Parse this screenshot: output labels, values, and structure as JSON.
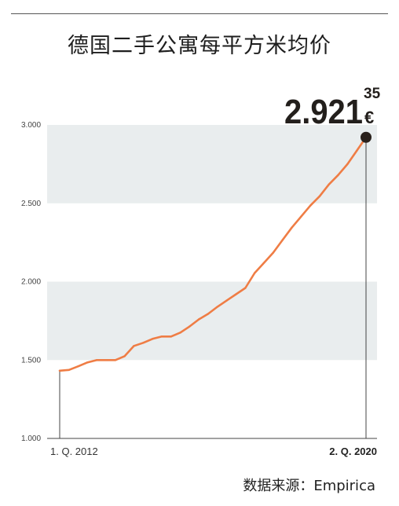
{
  "chart_data": {
    "type": "line",
    "title": "德国二手公寓每平方米均价",
    "source": "数据来源：Empirica",
    "ylim": [
      1000,
      3000
    ],
    "y_ticks": [
      "1.000",
      "1.500",
      "2.000",
      "2.500",
      "3.000"
    ],
    "x_tick_labels": {
      "first": "1. Q. 2012",
      "last": "2. Q. 2020"
    },
    "highlight": {
      "integer": "2.921",
      "cents": "35",
      "currency": "€"
    },
    "grid": "alternating horizontal bands",
    "colors": {
      "line": "#ef7d45",
      "band": "#e9edee",
      "marker": "#2a211c",
      "text": "#231f1c"
    },
    "series": [
      {
        "values": [
          1432,
          1437,
          1460,
          1485,
          1500,
          1500,
          1500,
          1525,
          1590,
          1610,
          1635,
          1650,
          1650,
          1675,
          1715,
          1760,
          1795,
          1840,
          1880,
          1920,
          1960,
          2055,
          2120,
          2185,
          2265,
          2345,
          2415,
          2485,
          2545,
          2620,
          2680,
          2750,
          2835,
          2921
        ]
      }
    ]
  }
}
